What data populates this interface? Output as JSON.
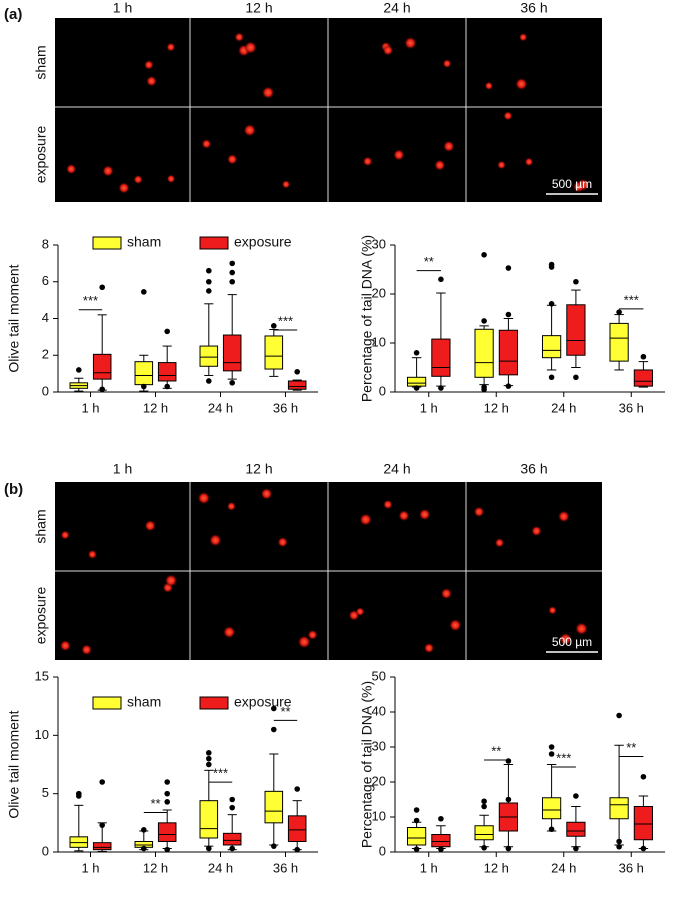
{
  "panels": [
    {
      "label": "(a)",
      "columns": [
        "1 h",
        "12 h",
        "24 h",
        "36 h"
      ],
      "rows": [
        "sham",
        "exposure"
      ],
      "scale_bar": "500 µm"
    },
    {
      "label": "(b)",
      "columns": [
        "1 h",
        "12 h",
        "24 h",
        "36 h"
      ],
      "rows": [
        "sham",
        "exposure"
      ],
      "scale_bar": "500 µm"
    }
  ],
  "chart_data": [
    {
      "type": "box",
      "ylabel": "Olive tail moment",
      "categories": [
        "1 h",
        "12 h",
        "24 h",
        "36 h"
      ],
      "ylim": [
        0,
        8
      ],
      "yticks": [
        0,
        2,
        4,
        6,
        8
      ],
      "legend": true,
      "series": [
        {
          "name": "sham",
          "color": "#ffff33",
          "boxes": [
            {
              "whislo": 0.05,
              "q1": 0.2,
              "med": 0.35,
              "q3": 0.5,
              "whishi": 0.75,
              "fliers": [
                1.2
              ]
            },
            {
              "whislo": 0.05,
              "q1": 0.4,
              "med": 0.9,
              "q3": 1.65,
              "whishi": 2.0,
              "fliers": [
                5.45,
                0.3
              ]
            },
            {
              "whislo": 0.9,
              "q1": 1.4,
              "med": 1.9,
              "q3": 2.5,
              "whishi": 4.8,
              "fliers": [
                6.6,
                6.0,
                5.5,
                0.6
              ]
            },
            {
              "whislo": 0.85,
              "q1": 1.25,
              "med": 1.95,
              "q3": 3.05,
              "whishi": 3.4,
              "fliers": [
                3.6
              ]
            }
          ]
        },
        {
          "name": "exposure",
          "color": "#ee1c1c",
          "boxes": [
            {
              "whislo": 0.1,
              "q1": 0.7,
              "med": 1.05,
              "q3": 2.05,
              "whishi": 4.2,
              "fliers": [
                5.7,
                0.15
              ]
            },
            {
              "whislo": 0.2,
              "q1": 0.6,
              "med": 0.9,
              "q3": 1.6,
              "whishi": 2.5,
              "fliers": [
                3.3,
                0.3
              ]
            },
            {
              "whislo": 0.7,
              "q1": 1.15,
              "med": 1.6,
              "q3": 3.1,
              "whishi": 5.3,
              "fliers": [
                7.0,
                6.5,
                6.0,
                0.5
              ]
            },
            {
              "whislo": 0.1,
              "q1": 0.15,
              "med": 0.3,
              "q3": 0.6,
              "whishi": 0.65,
              "fliers": [
                1.1
              ]
            }
          ]
        }
      ],
      "annotations": [
        {
          "label": "***",
          "category": "1 h",
          "y": 4.8
        },
        {
          "label": "***",
          "category": "36 h",
          "y": 3.7
        }
      ]
    },
    {
      "type": "box",
      "ylabel": "Percentage of tail DNA (%)",
      "categories": [
        "1 h",
        "12 h",
        "24 h",
        "36 h"
      ],
      "ylim": [
        0,
        30
      ],
      "yticks": [
        0,
        10,
        20,
        30
      ],
      "legend": false,
      "series": [
        {
          "color": "#ffff33",
          "boxes": [
            {
              "whislo": 1,
              "q1": 1.2,
              "med": 1.8,
              "q3": 3,
              "whishi": 7,
              "fliers": [
                8,
                0.8
              ]
            },
            {
              "whislo": 1.5,
              "q1": 3,
              "med": 6,
              "q3": 12.8,
              "whishi": 13.5,
              "fliers": [
                28,
                14.5,
                1,
                0.5
              ]
            },
            {
              "whislo": 4.5,
              "q1": 7,
              "med": 8.5,
              "q3": 11.5,
              "whishi": 17.7,
              "fliers": [
                26,
                25.5,
                18,
                3
              ]
            },
            {
              "whislo": 4.5,
              "q1": 6.3,
              "med": 11,
              "q3": 14,
              "whishi": 15.8,
              "fliers": [
                16.3
              ]
            }
          ]
        },
        {
          "color": "#ee1c1c",
          "boxes": [
            {
              "whislo": 1.2,
              "q1": 3.2,
              "med": 5,
              "q3": 10.8,
              "whishi": 20.2,
              "fliers": [
                23,
                0.8
              ]
            },
            {
              "whislo": 1.3,
              "q1": 3.5,
              "med": 6.3,
              "q3": 12.6,
              "whishi": 15,
              "fliers": [
                25.3,
                15.8,
                1.2
              ]
            },
            {
              "whislo": 5,
              "q1": 7.5,
              "med": 10.5,
              "q3": 17.8,
              "whishi": 20.8,
              "fliers": [
                22.5,
                3
              ]
            },
            {
              "whislo": 1,
              "q1": 1.2,
              "med": 2.2,
              "q3": 4.5,
              "whishi": 6.2,
              "fliers": [
                7.2
              ]
            }
          ]
        }
      ],
      "annotations": [
        {
          "label": "**",
          "category": "1 h",
          "y": 26
        },
        {
          "label": "***",
          "category": "36 h",
          "y": 18.2
        }
      ]
    },
    {
      "type": "box",
      "ylabel": "Olive tail moment",
      "categories": [
        "1 h",
        "12 h",
        "24 h",
        "36 h"
      ],
      "ylim": [
        0,
        15
      ],
      "yticks": [
        0,
        5,
        10,
        15
      ],
      "legend": true,
      "series": [
        {
          "name": "sham",
          "color": "#ffff33",
          "boxes": [
            {
              "whislo": 0.1,
              "q1": 0.4,
              "med": 0.8,
              "q3": 1.3,
              "whishi": 4,
              "fliers": [
                5,
                4.8
              ]
            },
            {
              "whislo": 0.2,
              "q1": 0.4,
              "med": 0.6,
              "q3": 0.9,
              "whishi": 1.8,
              "fliers": [
                1.9,
                0.3
              ]
            },
            {
              "whislo": 0.5,
              "q1": 1.2,
              "med": 2,
              "q3": 4.4,
              "whishi": 7,
              "fliers": [
                8.5,
                8,
                7.5,
                0.3
              ]
            },
            {
              "whislo": 0.6,
              "q1": 2.5,
              "med": 3.5,
              "q3": 5.2,
              "whishi": 8.4,
              "fliers": [
                12.3,
                10.5,
                0.5
              ]
            }
          ]
        },
        {
          "name": "exposure",
          "color": "#ee1c1c",
          "boxes": [
            {
              "whislo": 0.05,
              "q1": 0.2,
              "med": 0.4,
              "q3": 0.8,
              "whishi": 2.5,
              "fliers": [
                6,
                2.3
              ]
            },
            {
              "whislo": 0.3,
              "q1": 0.9,
              "med": 1.5,
              "q3": 2.5,
              "whishi": 3.6,
              "fliers": [
                6,
                5,
                4.3,
                0.2
              ]
            },
            {
              "whislo": 0.2,
              "q1": 0.6,
              "med": 1,
              "q3": 1.6,
              "whishi": 3.2,
              "fliers": [
                4.5,
                3.8,
                0.3
              ]
            },
            {
              "whislo": 0.2,
              "q1": 0.9,
              "med": 1.9,
              "q3": 3.1,
              "whishi": 4.4,
              "fliers": [
                5.4,
                0.2
              ]
            }
          ]
        }
      ],
      "annotations": [
        {
          "label": "**",
          "category": "12 h",
          "y": 3.9
        },
        {
          "label": "***",
          "category": "24 h",
          "y": 6.5
        },
        {
          "label": "**",
          "category": "36 h",
          "y": 11.8
        }
      ]
    },
    {
      "type": "box",
      "ylabel": "Percentage of tail DNA (%)",
      "categories": [
        "1 h",
        "12 h",
        "24 h",
        "36 h"
      ],
      "ylim": [
        0,
        50
      ],
      "yticks": [
        0,
        10,
        20,
        30,
        40,
        50
      ],
      "legend": false,
      "series": [
        {
          "color": "#ffff33",
          "boxes": [
            {
              "whislo": 1,
              "q1": 2,
              "med": 4,
              "q3": 7,
              "whishi": 8.5,
              "fliers": [
                12,
                9,
                0.8
              ]
            },
            {
              "whislo": 1.5,
              "q1": 3.5,
              "med": 5,
              "q3": 7.5,
              "whishi": 10.5,
              "fliers": [
                14.5,
                13,
                1.2
              ]
            },
            {
              "whislo": 6,
              "q1": 9.5,
              "med": 12,
              "q3": 15.5,
              "whishi": 25,
              "fliers": [
                30,
                28,
                6.5
              ]
            },
            {
              "whislo": 2,
              "q1": 9.5,
              "med": 13.5,
              "q3": 15.5,
              "whishi": 30.5,
              "fliers": [
                39,
                3,
                1.5
              ]
            }
          ]
        },
        {
          "color": "#ee1c1c",
          "boxes": [
            {
              "whislo": 1,
              "q1": 1.5,
              "med": 3,
              "q3": 5,
              "whishi": 7.5,
              "fliers": [
                9.5,
                0.8
              ]
            },
            {
              "whislo": 1.5,
              "q1": 6,
              "med": 10,
              "q3": 14,
              "whishi": 25,
              "fliers": [
                26,
                15,
                1
              ]
            },
            {
              "whislo": 1.5,
              "q1": 4.5,
              "med": 6,
              "q3": 8.5,
              "whishi": 13,
              "fliers": [
                16,
                1
              ]
            },
            {
              "whislo": 1,
              "q1": 3.5,
              "med": 8,
              "q3": 13,
              "whishi": 16,
              "fliers": [
                21.5,
                1
              ]
            }
          ]
        }
      ],
      "annotations": [
        {
          "label": "**",
          "category": "12 h",
          "y": 28
        },
        {
          "label": "***",
          "category": "24 h",
          "y": 26
        },
        {
          "label": "**",
          "category": "36 h",
          "y": 29
        }
      ]
    }
  ]
}
